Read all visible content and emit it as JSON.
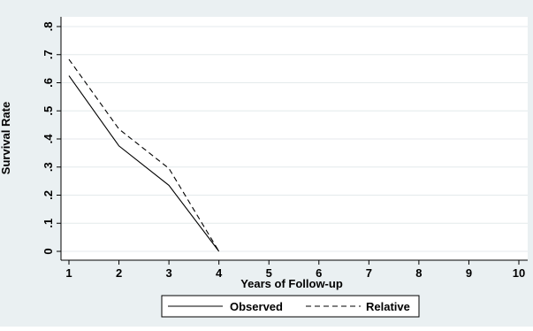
{
  "chart_data": {
    "type": "line",
    "title": "",
    "xlabel": "Years of Follow-up",
    "ylabel": "Survival Rate",
    "x_ticks": [
      "1",
      "2",
      "3",
      "4",
      "5",
      "6",
      "7",
      "8",
      "9",
      "10"
    ],
    "y_ticks": [
      "0",
      ".1",
      ".2",
      ".3",
      ".4",
      ".5",
      ".6",
      ".7",
      ".8"
    ],
    "xlim": [
      1,
      10
    ],
    "ylim": [
      0,
      0.8
    ],
    "grid": "horizontal",
    "legend_position": "bottom",
    "series": [
      {
        "name": "Observed",
        "style": "solid",
        "color": "#000000",
        "x": [
          1,
          2,
          3,
          4
        ],
        "y": [
          0.625,
          0.375,
          0.235,
          0.0
        ]
      },
      {
        "name": "Relative",
        "style": "dashed",
        "color": "#000000",
        "x": [
          1,
          2,
          3,
          4
        ],
        "y": [
          0.683,
          0.435,
          0.295,
          0.0
        ]
      }
    ],
    "colors": {
      "outer_background": "#eaf0f2",
      "plot_background": "#ffffff",
      "grid": "#e4eaec"
    }
  }
}
